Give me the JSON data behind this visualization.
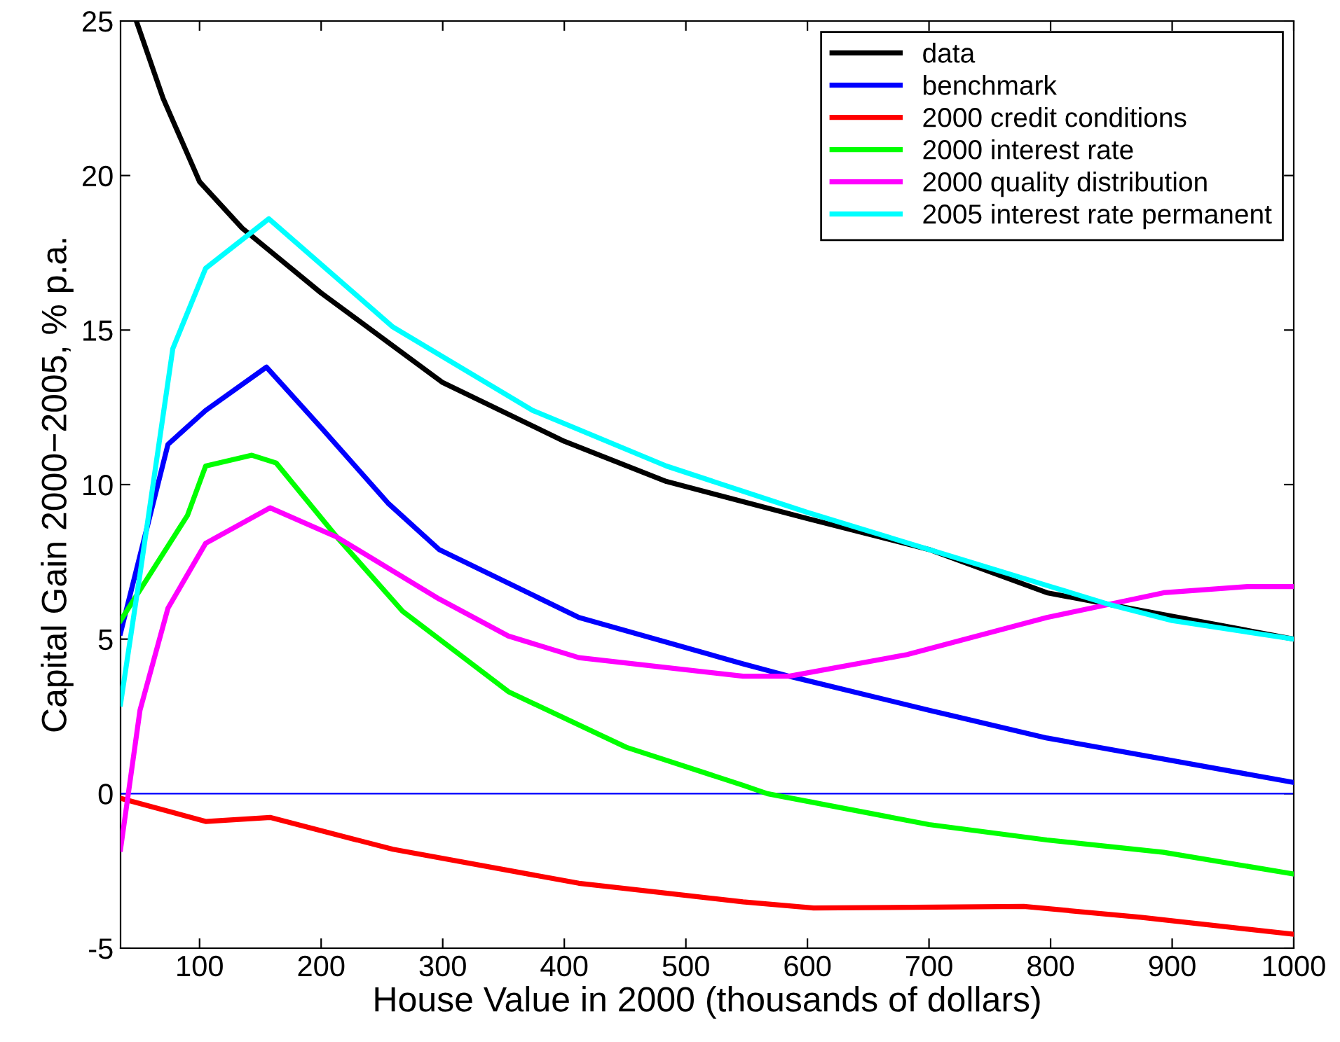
{
  "chart_data": {
    "type": "line",
    "xlabel": "House Value in 2000 (thousands of dollars)",
    "ylabel": "Capital Gain 2000−2005, % p.a.",
    "xlim": [
      35,
      1000
    ],
    "ylim": [
      -5,
      25
    ],
    "xticks": [
      100,
      200,
      300,
      400,
      500,
      600,
      700,
      800,
      900,
      1000
    ],
    "yticks": [
      -5,
      0,
      5,
      10,
      15,
      20,
      25
    ],
    "grid": false,
    "legend": "top right",
    "marker": "none",
    "line_style": "solid",
    "ref_lines": [
      {
        "axis": "y",
        "value": 0,
        "color": "#0000ff"
      }
    ],
    "series": [
      {
        "name": "data",
        "color": "#000000",
        "x": [
          48,
          70,
          100,
          135,
          200,
          300,
          400,
          484,
          600,
          700,
          797,
          1000
        ],
        "values": [
          25,
          22.5,
          19.8,
          18.3,
          16.2,
          13.3,
          11.4,
          10.1,
          8.9,
          7.9,
          6.5,
          5.0
        ]
      },
      {
        "name": "benchmark",
        "color": "#0000ff",
        "x": [
          35,
          74,
          105,
          155,
          201,
          255,
          297,
          412,
          547,
          585,
          700,
          797,
          1000
        ],
        "values": [
          5.2,
          11.3,
          12.4,
          13.8,
          11.8,
          9.4,
          7.9,
          5.7,
          4.2,
          3.8,
          2.7,
          1.8,
          0.36
        ]
      },
      {
        "name": "2000 credit conditions",
        "color": "#ff0000",
        "x": [
          35,
          105,
          158,
          259,
          412,
          547,
          605,
          778,
          874,
          1000
        ],
        "values": [
          -0.15,
          -0.9,
          -0.77,
          -1.8,
          -2.9,
          -3.5,
          -3.7,
          -3.65,
          -4.0,
          -4.55
        ]
      },
      {
        "name": "2000 interest rate",
        "color": "#00ff00",
        "x": [
          35,
          90,
          105,
          143,
          163,
          213,
          267,
          354,
          451,
          547,
          567,
          700,
          797,
          893,
          1000
        ],
        "values": [
          5.6,
          9.0,
          10.6,
          10.95,
          10.7,
          8.3,
          5.9,
          3.3,
          1.5,
          0.27,
          0,
          -1.0,
          -1.5,
          -1.9,
          -2.6
        ]
      },
      {
        "name": "2000 quality distribution",
        "color": "#ff00ff",
        "x": [
          35,
          51,
          74,
          105,
          158,
          213,
          297,
          354,
          412,
          547,
          585,
          682,
          797,
          893,
          962,
          1000
        ],
        "values": [
          -1.8,
          2.7,
          6.0,
          8.1,
          9.25,
          8.3,
          6.3,
          5.1,
          4.4,
          3.8,
          3.8,
          4.5,
          5.7,
          6.5,
          6.7,
          6.7
        ]
      },
      {
        "name": "2005 interest rate permanent",
        "color": "#00ffff",
        "x": [
          35,
          51,
          78,
          105,
          157,
          259,
          374,
          484,
          600,
          700,
          800,
          850,
          900,
          1000
        ],
        "values": [
          2.9,
          7.1,
          14.4,
          17.0,
          18.6,
          15.1,
          12.4,
          10.6,
          9.1,
          7.9,
          6.7,
          6.1,
          5.6,
          5.0
        ]
      }
    ]
  }
}
